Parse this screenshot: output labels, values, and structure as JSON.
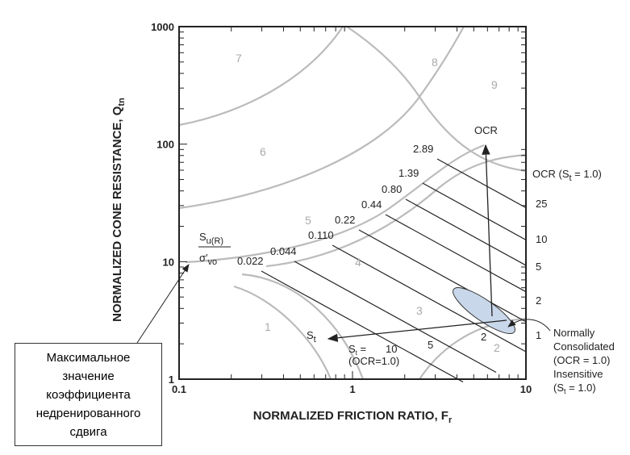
{
  "chart_data": {
    "type": "sbt-chart",
    "xlabel": {
      "main": "NORMALIZED FRICTION RATIO, F",
      "sub": "r"
    },
    "ylabel": {
      "main": "NORMALIZED CONE RESISTANCE, Q",
      "sub": "tn"
    },
    "xlim": [
      0.1,
      10
    ],
    "ylim": [
      1,
      1000
    ],
    "xscale": "log",
    "yscale": "log",
    "xticks": [
      0.1,
      1,
      10
    ],
    "yticks": [
      1,
      10,
      100,
      1000
    ],
    "zones": [
      "1",
      "2",
      "3",
      "4",
      "5",
      "6",
      "7",
      "8",
      "9"
    ],
    "su_label": {
      "top": "S",
      "top_sub": "u(R)",
      "bottom": "σ′",
      "bottom_sub": "vo"
    },
    "contour_labels": [
      "0.022",
      "0.044",
      "0.110",
      "0.22",
      "0.44",
      "0.80",
      "1.39",
      "2.89"
    ],
    "ocr_arrow_label": "OCR",
    "ocr_scale_title": {
      "main": "OCR (S",
      "sub": "t",
      "end": " = 1.0)"
    },
    "ocr_values": [
      "25",
      "10",
      "5",
      "2",
      "1"
    ],
    "st_arrow_label": {
      "main": "S",
      "sub": "t"
    },
    "st_values": [
      "10",
      "5",
      "2"
    ],
    "st_scale_title": {
      "main": "S",
      "sub": "t",
      "end": " =",
      "line2": "(OCR=1.0)"
    },
    "nc_note": [
      "Normally",
      "Consolidated",
      "(OCR = 1.0)",
      "Insensitive",
      "(S",
      "t",
      " = 1.0)"
    ],
    "callout": [
      "Максимальное",
      "значение",
      "коэффициента",
      "недренированного",
      "сдвига"
    ]
  }
}
